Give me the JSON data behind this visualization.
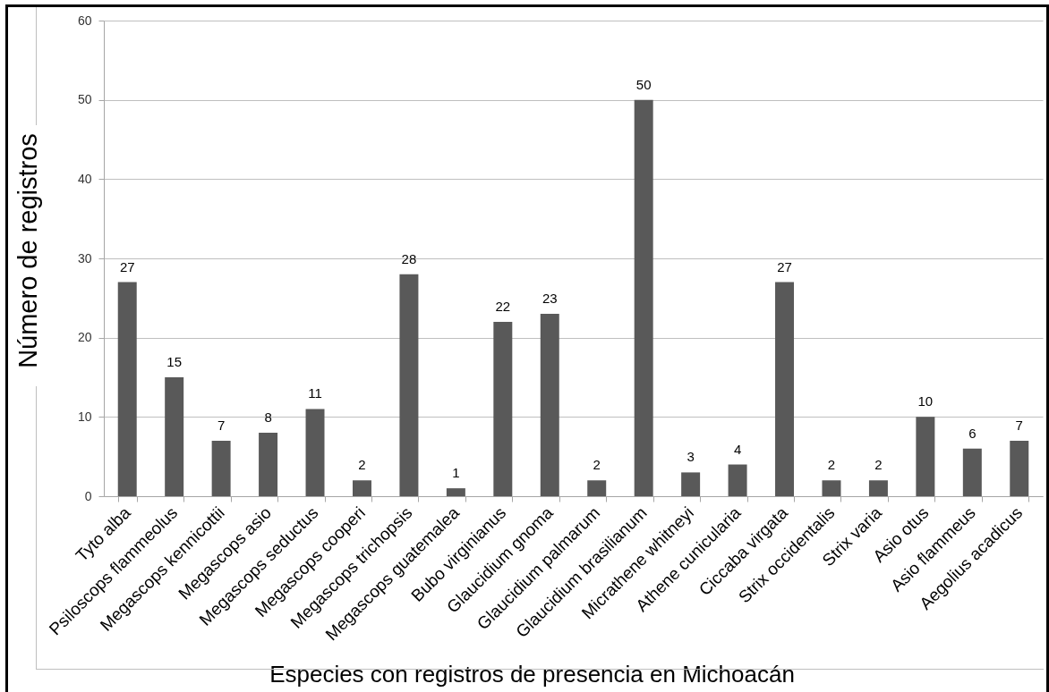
{
  "chart_data": {
    "type": "bar",
    "xlabel": "Especies con registros de presencia en Michoacán",
    "ylabel": "Número de registros",
    "categories": [
      "Tyto alba",
      "Psiloscops flammeolus",
      "Megascops kennicottii",
      "Megascops asio",
      "Megascops seductus",
      "Megascops cooperi",
      "Megascops trichopsis",
      "Megascops guatemalea",
      "Bubo virginianus",
      "Glaucidium gnoma",
      "Glaucidium palmarum",
      "Glaucidium brasilianum",
      "Micrathene whitneyi",
      "Athene cunicularia",
      "Ciccaba virgata",
      "Strix occidentalis",
      "Strix varia",
      "Asio otus",
      "Asio flammeus",
      "Aegolius acadicus"
    ],
    "values": [
      27,
      15,
      7,
      8,
      11,
      2,
      28,
      1,
      22,
      23,
      2,
      50,
      3,
      4,
      27,
      2,
      2,
      10,
      6,
      7
    ],
    "color": "#595959",
    "ylim": [
      0,
      60
    ],
    "yticks": [
      0,
      10,
      20,
      30,
      40,
      50,
      60
    ],
    "grid": "y",
    "data_labels": true
  }
}
